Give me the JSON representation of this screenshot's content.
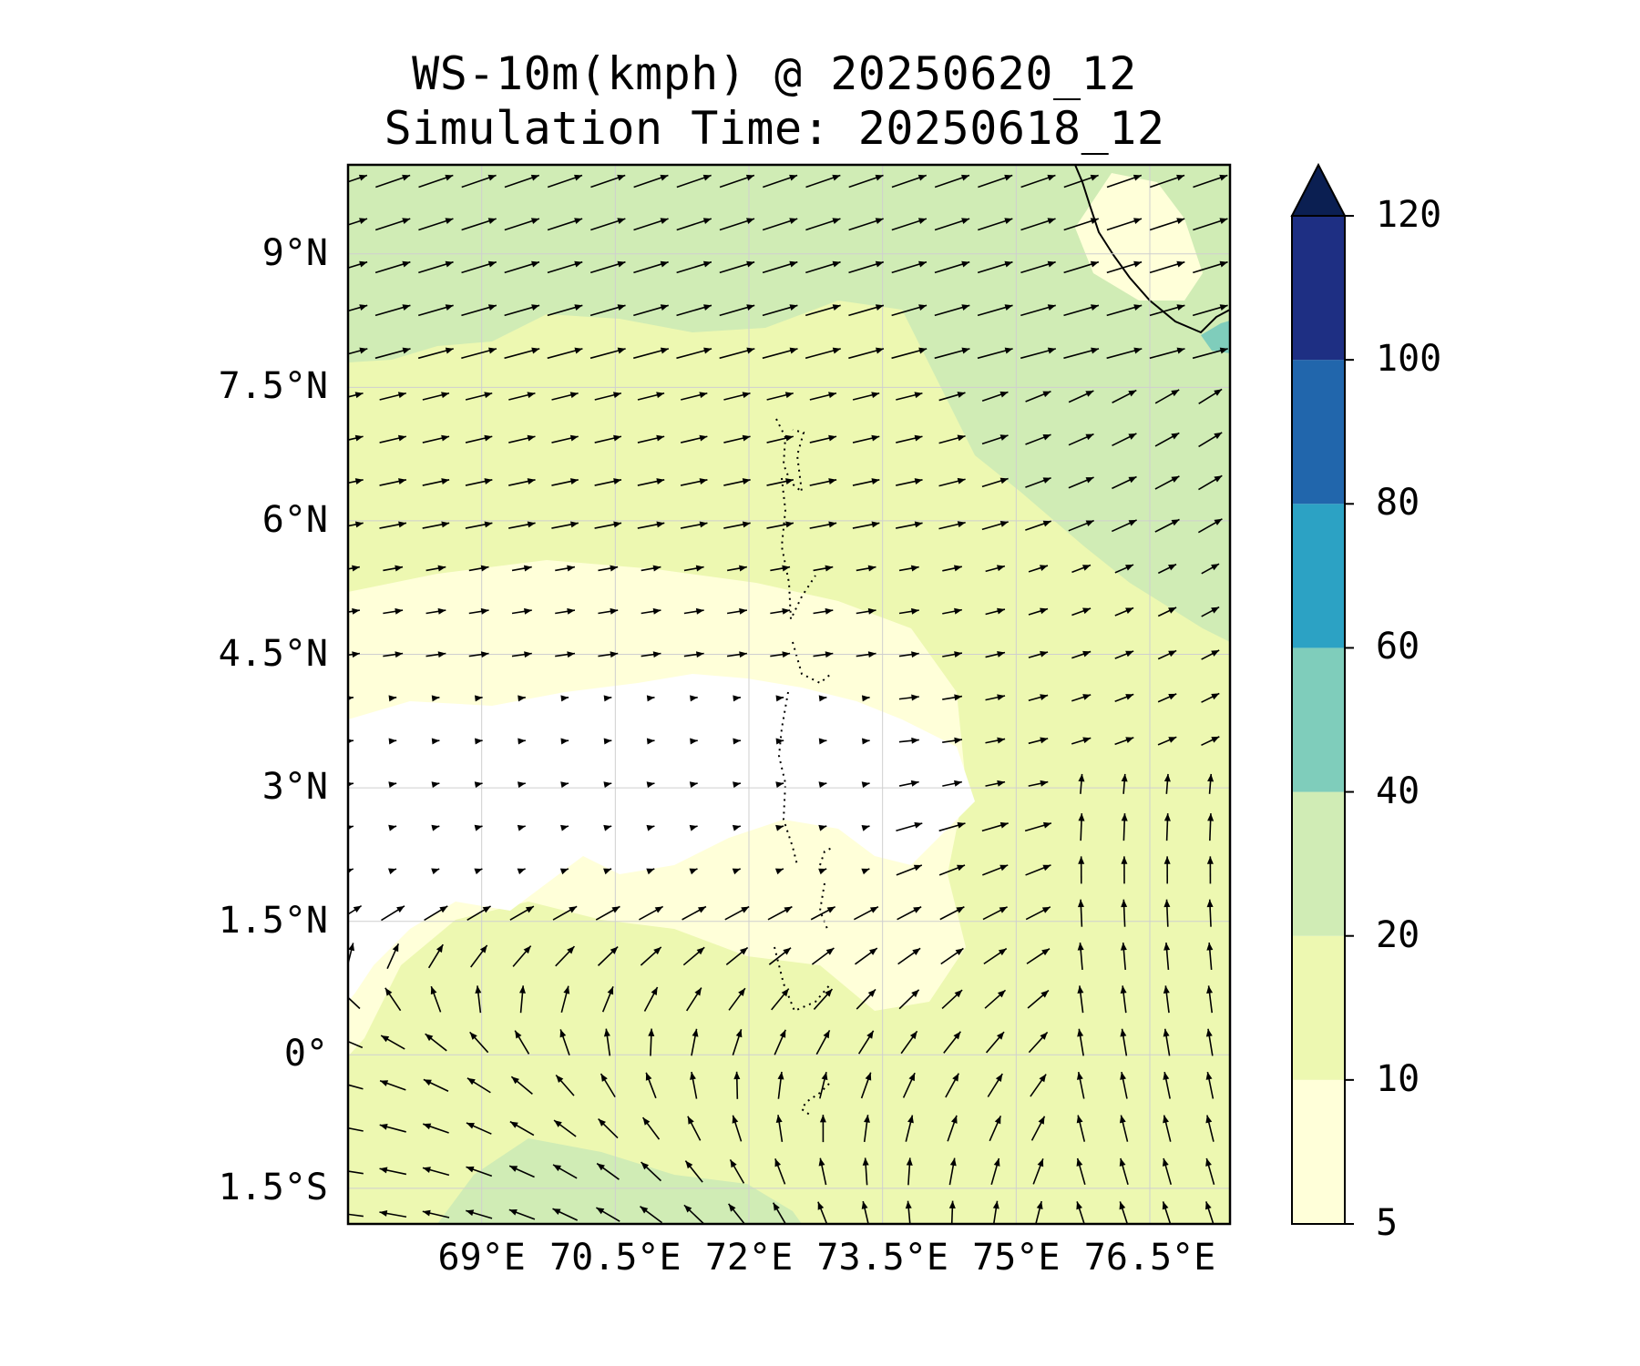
{
  "title": {
    "line1": "WS-10m(kmph) @ 20250620_12",
    "line2": "Simulation Time: 20250618_12"
  },
  "map": {
    "lon_range": [
      67.5,
      77.4
    ],
    "lat_range": [
      -1.9,
      10.0
    ],
    "y_ticks": [
      {
        "lat": 9.0,
        "label": "9°N"
      },
      {
        "lat": 7.5,
        "label": "7.5°N"
      },
      {
        "lat": 6.0,
        "label": "6°N"
      },
      {
        "lat": 4.5,
        "label": "4.5°N"
      },
      {
        "lat": 3.0,
        "label": "3°N"
      },
      {
        "lat": 1.5,
        "label": "1.5°N"
      },
      {
        "lat": 0.0,
        "label": "0°"
      },
      {
        "lat": -1.5,
        "label": "1.5°S"
      }
    ],
    "x_ticks": [
      {
        "lon": 69.0,
        "label": "69°E"
      },
      {
        "lon": 70.5,
        "label": "70.5°E"
      },
      {
        "lon": 72.0,
        "label": "72°E"
      },
      {
        "lon": 73.5,
        "label": "73.5°E"
      },
      {
        "lon": 75.0,
        "label": "75°E"
      },
      {
        "lon": 76.5,
        "label": "76.5°E"
      }
    ]
  },
  "colorbar": {
    "levels": [
      5,
      10,
      20,
      40,
      60,
      80,
      100,
      120
    ],
    "tick_labels": [
      "5",
      "10",
      "20",
      "40",
      "60",
      "80",
      "100",
      "120"
    ],
    "colors": [
      "#ffffd9",
      "#edf8b1",
      "#d0ecb5",
      "#7fcdbb",
      "#2ca2c4",
      "#2166ac",
      "#1e2f83"
    ],
    "extend_color": "#0b1f52"
  },
  "colors": {
    "band_5_10": "#ffffd9",
    "band_10_20": "#edf8b1",
    "band_20_40": "#d0ecb5",
    "band_40_60": "#7fcdbb",
    "below_min": "#ffffff"
  }
}
